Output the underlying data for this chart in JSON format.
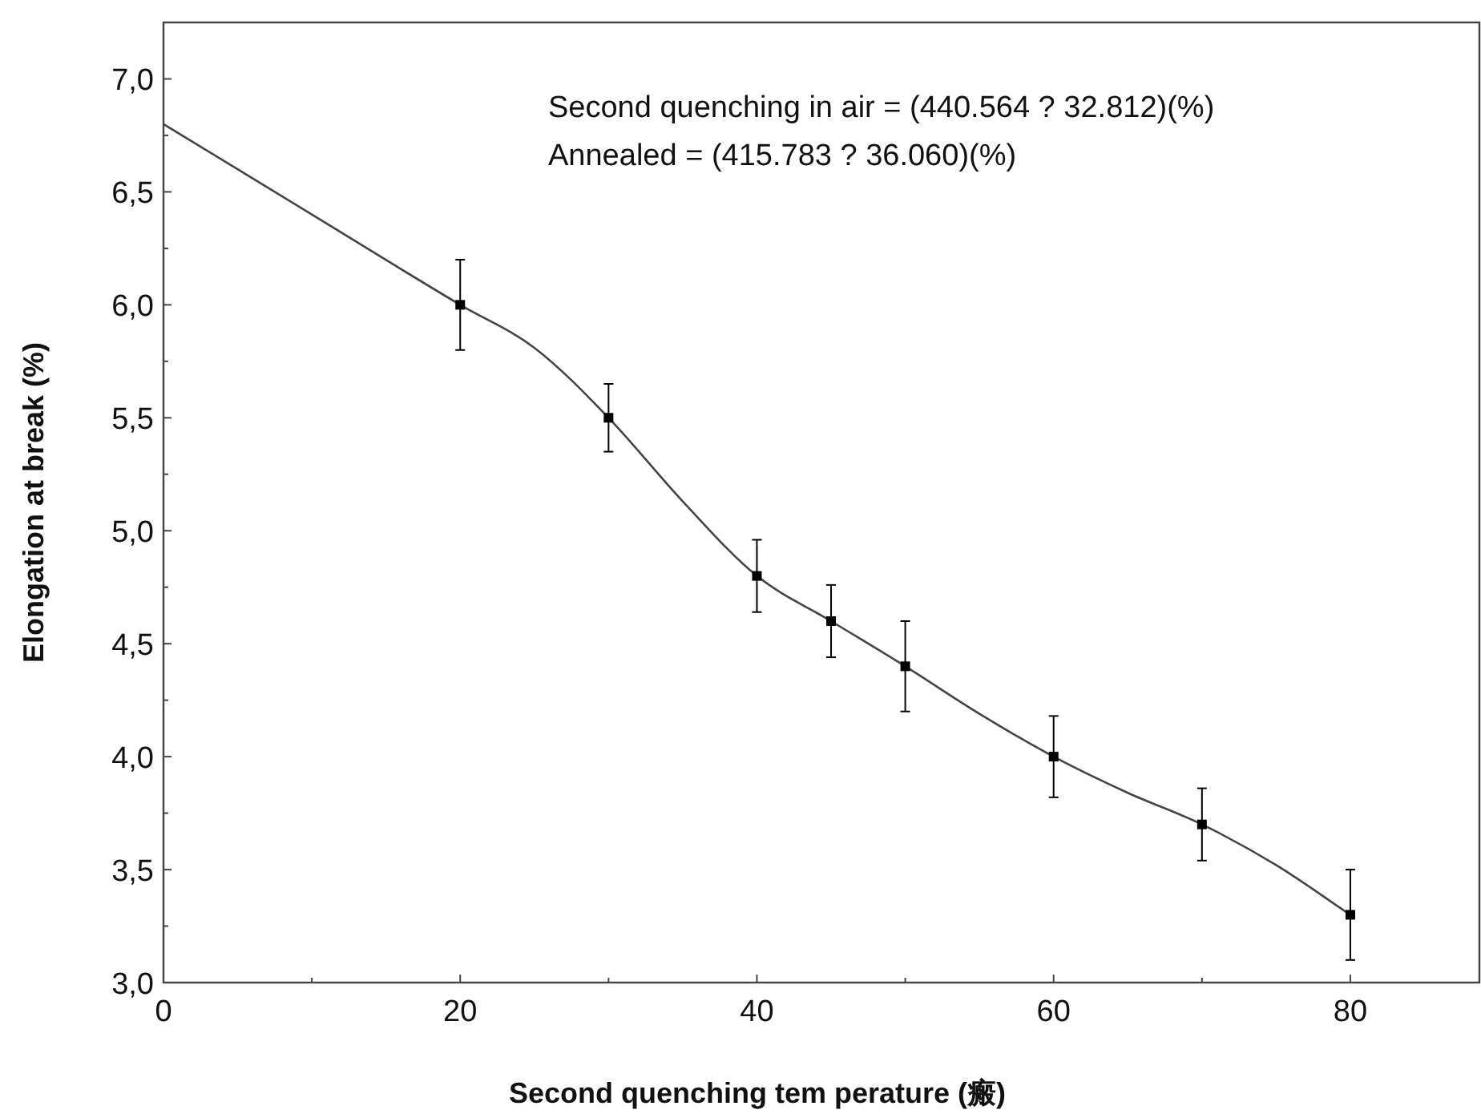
{
  "chart_data": {
    "type": "line",
    "xlabel": "Second quenching tem perature (瘢)",
    "ylabel": "Elongation at break (%)",
    "annotations": [
      "Second quenching in air = (440.564 ? 32.812)(%)",
      "Annealed = (415.783 ? 36.060)(%)"
    ],
    "series": [
      {
        "color": "#444444",
        "marker": "none",
        "x": [
          0,
          10,
          20,
          25,
          30,
          35,
          40,
          45,
          50,
          55,
          60,
          65,
          70,
          75,
          80
        ],
        "values": [
          6.8,
          6.4,
          6.0,
          5.81,
          5.5,
          5.13,
          4.8,
          4.6,
          4.4,
          4.19,
          4.0,
          3.84,
          3.7,
          3.52,
          3.3
        ]
      },
      {
        "type": "scatter",
        "color": "#000000",
        "marker": "square",
        "x": [
          20,
          30,
          40,
          45,
          50,
          60,
          70,
          80
        ],
        "values": [
          6.0,
          5.5,
          4.8,
          4.6,
          4.4,
          4.0,
          3.7,
          3.3
        ],
        "errors": [
          0.2,
          0.15,
          0.16,
          0.16,
          0.2,
          0.18,
          0.16,
          0.2
        ]
      }
    ],
    "xlim": [
      0,
      88.7
    ],
    "xticks": [
      0,
      {
        "value": 10,
        "label": null
      },
      20,
      {
        "value": 30,
        "label": null
      },
      40,
      {
        "value": 50,
        "label": null
      },
      60,
      {
        "value": 70,
        "label": null
      },
      80
    ],
    "ylim": [
      3.0,
      7.25
    ],
    "yticks": [
      {
        "value": 3.0,
        "label": "3,0"
      },
      {
        "value": 3.25,
        "label": null
      },
      {
        "value": 3.5,
        "label": "3,5"
      },
      {
        "value": 3.75,
        "label": null
      },
      {
        "value": 4.0,
        "label": "4,0"
      },
      {
        "value": 4.25,
        "label": null
      },
      {
        "value": 4.5,
        "label": "4,5"
      },
      {
        "value": 4.75,
        "label": null
      },
      {
        "value": 5.0,
        "label": "5,0"
      },
      {
        "value": 5.25,
        "label": null
      },
      {
        "value": 5.5,
        "label": "5,5"
      },
      {
        "value": 5.75,
        "label": null
      },
      {
        "value": 6.0,
        "label": "6,0"
      },
      {
        "value": 6.25,
        "label": null
      },
      {
        "value": 6.5,
        "label": "6,5"
      },
      {
        "value": 6.75,
        "label": null
      },
      {
        "value": 7.0,
        "label": "7,0"
      }
    ],
    "grid": false
  }
}
